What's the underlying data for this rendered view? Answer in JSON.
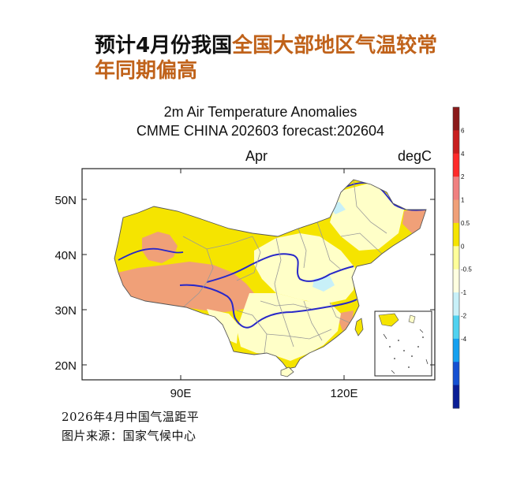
{
  "headline": {
    "part1": "预计4月份我国",
    "part2": "全国大部地区气温较常",
    "part3": "年同期偏高"
  },
  "map": {
    "title_line1": "2m Air Temperature Anomalies",
    "title_line2": "CMME CHINA 202603 forecast:202604",
    "month_label": "Apr",
    "unit_label": "degC",
    "lat_ticks": [
      {
        "label": "50N",
        "lat": 50
      },
      {
        "label": "40N",
        "lat": 40
      },
      {
        "label": "30N",
        "lat": 30
      },
      {
        "label": "20N",
        "lat": 20
      }
    ],
    "lon_ticks": [
      {
        "label": "90E",
        "lon": 90
      },
      {
        "label": "120E",
        "lon": 120
      }
    ],
    "colors": {
      "pale": "#ffffc8",
      "yellow": "#f5e400",
      "orange": "#f0a078",
      "light_blue": "#c8f0f8",
      "frame": "#222222",
      "river": "#2828c8",
      "border": "#999999"
    }
  },
  "colorbar": {
    "ticks": [
      "6",
      "4",
      "2",
      "1",
      "0.5",
      "0",
      "-0.5",
      "-1",
      "-2",
      "-4"
    ],
    "colors": [
      "#8b1a1a",
      "#c81e1e",
      "#ff2a2a",
      "#f08080",
      "#f0a078",
      "#f5e400",
      "#ffff9a",
      "#ffffe0",
      "#c8f0f8",
      "#50d2f0",
      "#14a0f0",
      "#1450d2",
      "#0a1e96"
    ]
  },
  "caption": {
    "line1": "2026年4月中国气温距平",
    "line2": "图片来源：国家气候中心"
  }
}
